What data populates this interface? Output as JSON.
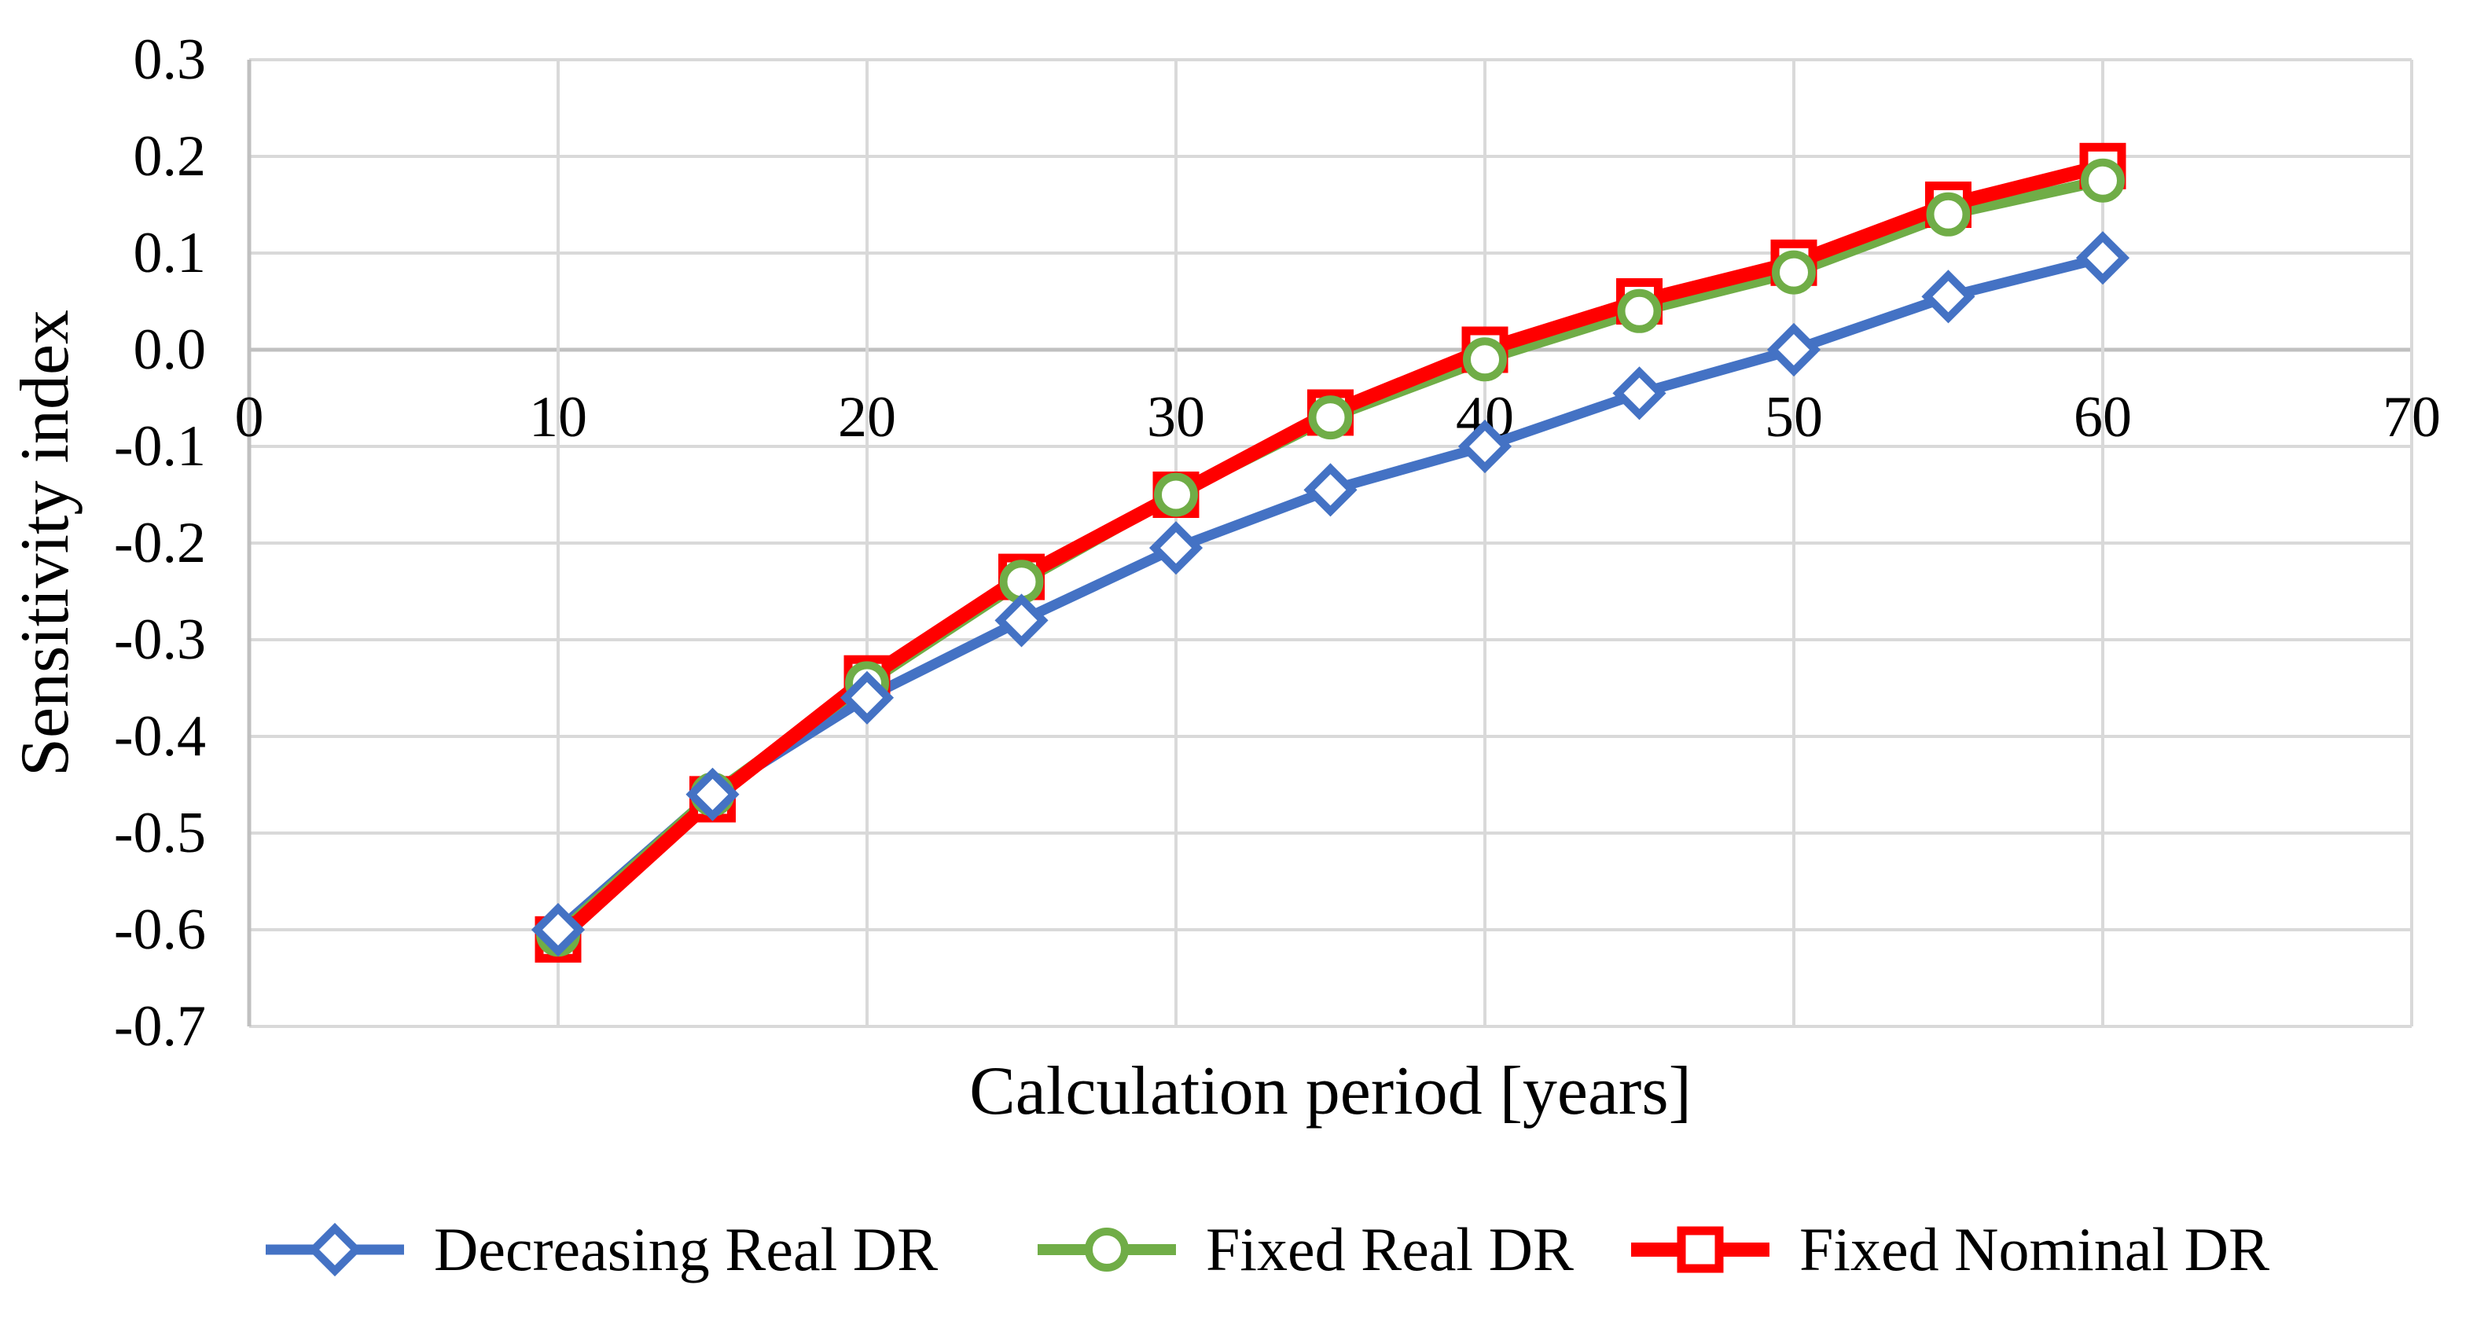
{
  "chart_data": {
    "type": "line",
    "title": "",
    "xlabel": "Calculation period [years]",
    "ylabel": "Sensitivity index",
    "x": [
      10,
      15,
      20,
      25,
      30,
      35,
      40,
      45,
      50,
      55,
      60
    ],
    "series": [
      {
        "name": "Decreasing Real DR",
        "color": "#4472c4",
        "marker": "diamond",
        "values": [
          -0.6,
          -0.46,
          -0.36,
          -0.28,
          -0.205,
          -0.145,
          -0.1,
          -0.045,
          0.0,
          0.055,
          0.095
        ]
      },
      {
        "name": "Fixed Real DR",
        "color": "#70ad47",
        "marker": "circle",
        "values": [
          -0.605,
          -0.46,
          -0.345,
          -0.24,
          -0.15,
          -0.07,
          -0.01,
          0.04,
          0.08,
          0.14,
          0.175
        ]
      },
      {
        "name": "Fixed Nominal DR",
        "color": "#ff0000",
        "marker": "square",
        "values": [
          -0.61,
          -0.465,
          -0.34,
          -0.235,
          -0.15,
          -0.065,
          0.0,
          0.05,
          0.09,
          0.15,
          0.19
        ]
      }
    ],
    "xlim": [
      0,
      70
    ],
    "ylim": [
      -0.7,
      0.3
    ],
    "x_ticks": [
      0,
      10,
      20,
      30,
      40,
      50,
      60,
      70
    ],
    "x_tick_labels": [
      "0",
      "10",
      "20",
      "30",
      "40",
      "50",
      "60",
      "70"
    ],
    "y_ticks": [
      0.3,
      0.2,
      0.1,
      0.0,
      -0.1,
      -0.2,
      -0.3,
      -0.4,
      -0.5,
      -0.6,
      -0.7
    ],
    "y_tick_labels": [
      "0.3",
      "0.2",
      "0.1",
      "0.0",
      "-0.1",
      "-0.2",
      "-0.3",
      "-0.4",
      "-0.5",
      "-0.6",
      "-0.7"
    ],
    "grid": true,
    "gridline_color": "#d9d9d9",
    "axis_line_color": "#c0c0c0",
    "legend_position": "bottom"
  }
}
